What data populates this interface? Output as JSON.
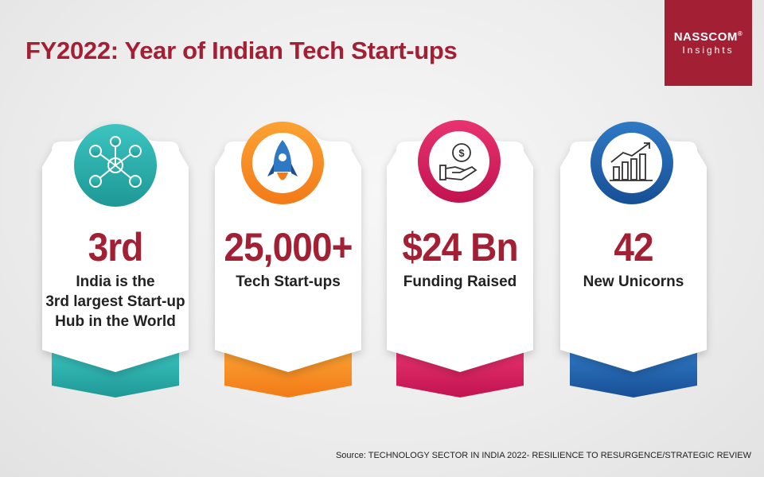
{
  "title": "FY2022: Year of Indian Tech Start-ups",
  "logo": {
    "name": "NASSCOM",
    "mark": "®",
    "sub": "Insights"
  },
  "cards": [
    {
      "value": "3rd",
      "label_lines": [
        "India is the",
        "3rd largest Start-up",
        "Hub in the World"
      ],
      "icon": "network-people-icon",
      "accent": "#2bb3b1"
    },
    {
      "value": "25,000+",
      "label_lines": [
        "Tech Start-ups"
      ],
      "icon": "rocket-icon",
      "accent": "#f6891f"
    },
    {
      "value": "$24 Bn",
      "label_lines": [
        "Funding Raised"
      ],
      "icon": "money-hand-icon",
      "accent": "#d81b5c"
    },
    {
      "value": "42",
      "label_lines": [
        "New Unicorns"
      ],
      "icon": "growth-chart-icon",
      "accent": "#1f63ad"
    }
  ],
  "source": "Source: TECHNOLOGY SECTOR IN INDIA 2022- RESILIENCE TO RESURGENCE/STRATEGIC REVIEW",
  "colors": {
    "brand": "#a31f34",
    "text": "#222222"
  }
}
